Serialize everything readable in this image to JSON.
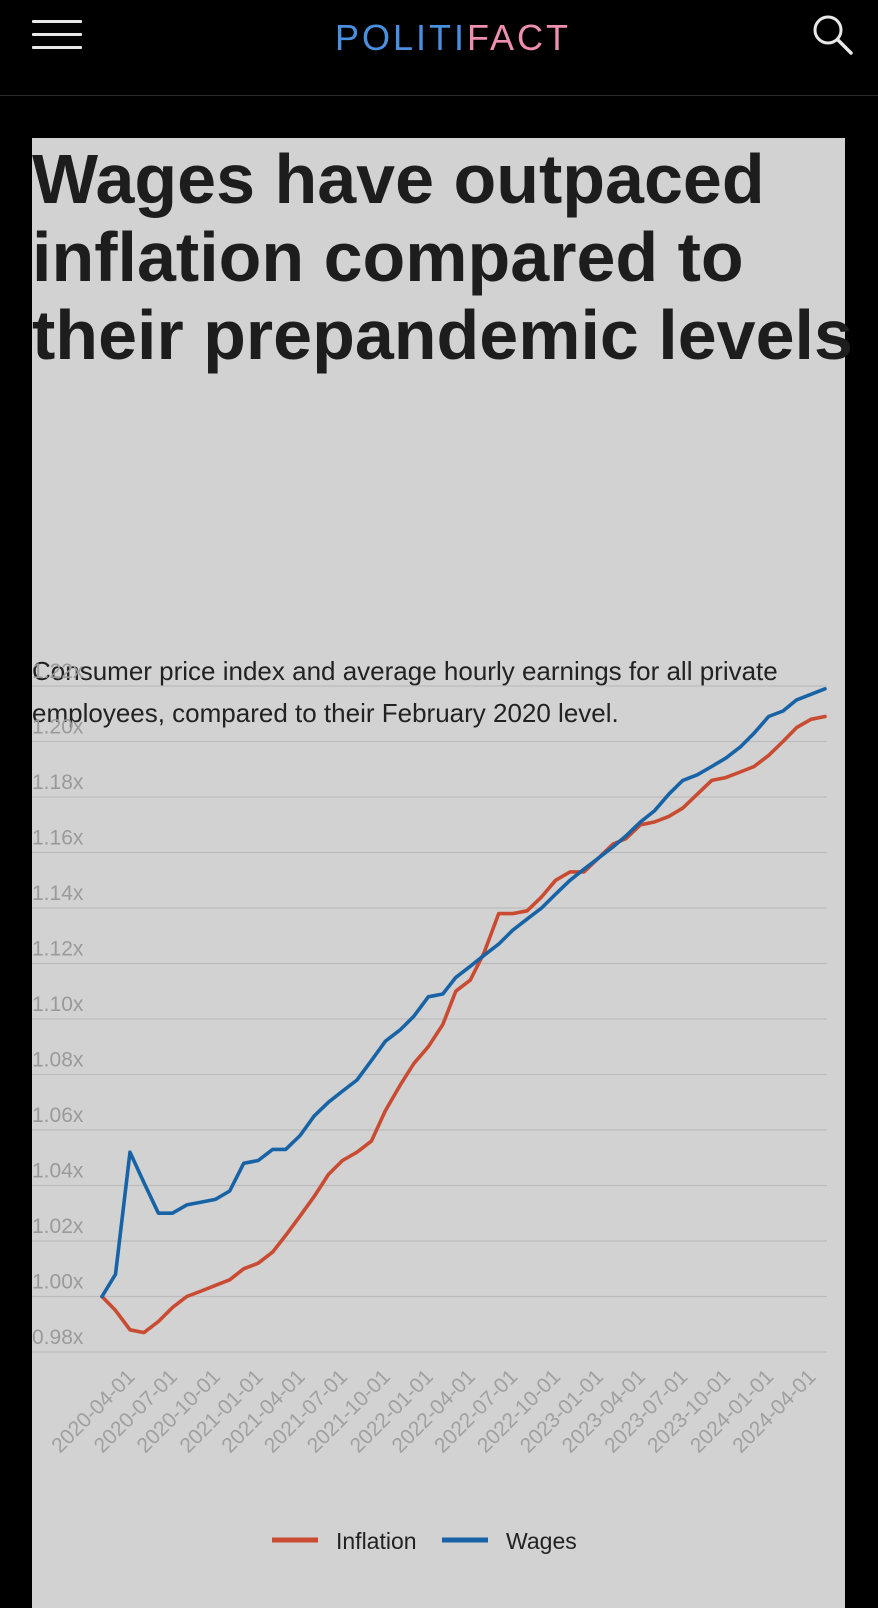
{
  "header": {
    "logo_part1": "POLITI",
    "logo_part2": "FACT",
    "menu_icon": "hamburger-menu-icon",
    "search_icon": "search-icon",
    "logo_colors": {
      "politi": "#4a8fe0",
      "fact": "#ef8fb0"
    }
  },
  "article": {
    "headline": "Wages have outpaced inflation compared to their prepandemic levels",
    "subtitle": "Consumer price index and average hourly earnings for all private employees, compared to their February 2020 level."
  },
  "chart_data": {
    "type": "line",
    "title": "",
    "xlabel": "",
    "ylabel": "",
    "ylim": [
      0.98,
      1.22
    ],
    "yticks": [
      "0.98x",
      "1.00x",
      "1.02x",
      "1.04x",
      "1.06x",
      "1.08x",
      "1.10x",
      "1.12x",
      "1.14x",
      "1.16x",
      "1.18x",
      "1.20x",
      "1.22x"
    ],
    "ytick_values": [
      0.98,
      1.0,
      1.02,
      1.04,
      1.06,
      1.08,
      1.1,
      1.12,
      1.14,
      1.16,
      1.18,
      1.2,
      1.22
    ],
    "xticks": [
      "2020-04-01",
      "2020-07-01",
      "2020-10-01",
      "2021-01-01",
      "2021-04-01",
      "2021-07-01",
      "2021-10-01",
      "2022-01-01",
      "2022-04-01",
      "2022-07-01",
      "2022-10-01",
      "2023-01-01",
      "2023-04-01",
      "2023-07-01",
      "2023-10-01",
      "2024-01-01",
      "2024-04-01"
    ],
    "grid": true,
    "legend_position": "bottom-center",
    "x": [
      "2020-02-01",
      "2020-03-01",
      "2020-04-01",
      "2020-05-01",
      "2020-06-01",
      "2020-07-01",
      "2020-08-01",
      "2020-09-01",
      "2020-10-01",
      "2020-11-01",
      "2020-12-01",
      "2021-01-01",
      "2021-02-01",
      "2021-03-01",
      "2021-04-01",
      "2021-05-01",
      "2021-06-01",
      "2021-07-01",
      "2021-08-01",
      "2021-09-01",
      "2021-10-01",
      "2021-11-01",
      "2021-12-01",
      "2022-01-01",
      "2022-02-01",
      "2022-03-01",
      "2022-04-01",
      "2022-05-01",
      "2022-06-01",
      "2022-07-01",
      "2022-08-01",
      "2022-09-01",
      "2022-10-01",
      "2022-11-01",
      "2022-12-01",
      "2023-01-01",
      "2023-02-01",
      "2023-03-01",
      "2023-04-01",
      "2023-05-01",
      "2023-06-01",
      "2023-07-01",
      "2023-08-01",
      "2023-09-01",
      "2023-10-01",
      "2023-11-01",
      "2023-12-01",
      "2024-01-01",
      "2024-02-01",
      "2024-03-01",
      "2024-04-01",
      "2024-05-01"
    ],
    "series": [
      {
        "name": "Inflation",
        "color": "#c84b32",
        "values": [
          1.0,
          0.995,
          0.988,
          0.987,
          0.991,
          0.996,
          1.0,
          1.002,
          1.004,
          1.006,
          1.01,
          1.012,
          1.016,
          1.022,
          1.029,
          1.036,
          1.044,
          1.049,
          1.052,
          1.056,
          1.067,
          1.076,
          1.084,
          1.09,
          1.098,
          1.11,
          1.114,
          1.124,
          1.138,
          1.138,
          1.139,
          1.144,
          1.15,
          1.153,
          1.153,
          1.158,
          1.163,
          1.165,
          1.17,
          1.171,
          1.173,
          1.176,
          1.181,
          1.186,
          1.187,
          1.189,
          1.191,
          1.195,
          1.2,
          1.205,
          1.208,
          1.209
        ]
      },
      {
        "name": "Wages",
        "color": "#1763a6",
        "values": [
          1.0,
          1.008,
          1.052,
          1.041,
          1.03,
          1.03,
          1.033,
          1.034,
          1.035,
          1.038,
          1.048,
          1.049,
          1.053,
          1.053,
          1.058,
          1.065,
          1.07,
          1.074,
          1.078,
          1.085,
          1.092,
          1.096,
          1.101,
          1.108,
          1.109,
          1.115,
          1.119,
          1.123,
          1.127,
          1.132,
          1.136,
          1.14,
          1.145,
          1.15,
          1.154,
          1.158,
          1.162,
          1.166,
          1.171,
          1.175,
          1.181,
          1.186,
          1.188,
          1.191,
          1.194,
          1.198,
          1.203,
          1.209,
          1.211,
          1.215,
          1.217,
          1.219
        ]
      }
    ]
  }
}
